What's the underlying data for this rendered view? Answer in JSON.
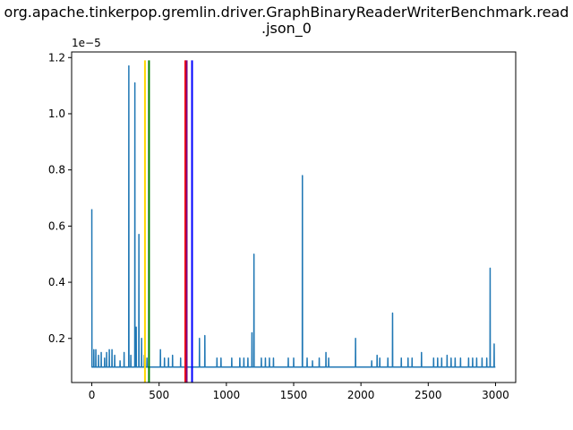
{
  "chart_data": {
    "type": "line",
    "title_line1": "org.apache.tinkerpop.gremlin.driver.GraphBinaryReaderWriterBenchmark.read",
    "title_line2": ".json_0",
    "xlabel": "",
    "ylabel": "",
    "y_scale_label": "1e−5",
    "xlim": [
      -150,
      3150
    ],
    "ylim": [
      4.3e-07,
      1.22e-05
    ],
    "x_ticks": [
      0,
      500,
      1000,
      1500,
      2000,
      2500,
      3000
    ],
    "x_tick_labels": [
      "0",
      "500",
      "1000",
      "1500",
      "2000",
      "2500",
      "3000"
    ],
    "y_ticks": [
      2e-06,
      4e-06,
      6e-06,
      8e-06,
      1e-05,
      1.2e-05
    ],
    "y_tick_labels": [
      "0.2",
      "0.4",
      "0.6",
      "0.8",
      "1.0",
      "1.2"
    ],
    "series": [
      {
        "color": "#1f77b4",
        "baseline": 9.8e-07,
        "n_points": 3000,
        "spikes": [
          [
            0,
            6.6e-06
          ],
          [
            15,
            1.6e-06
          ],
          [
            30,
            1.6e-06
          ],
          [
            50,
            1.4e-06
          ],
          [
            70,
            1.5e-06
          ],
          [
            95,
            1.3e-06
          ],
          [
            110,
            1.5e-06
          ],
          [
            130,
            1.6e-06
          ],
          [
            150,
            1.6e-06
          ],
          [
            170,
            1.4e-06
          ],
          [
            210,
            1.2e-06
          ],
          [
            240,
            1.5e-06
          ],
          [
            275,
            1.17e-05
          ],
          [
            290,
            1.4e-06
          ],
          [
            320,
            1.11e-05
          ],
          [
            330,
            2.4e-06
          ],
          [
            350,
            5.7e-06
          ],
          [
            370,
            2e-06
          ],
          [
            390,
            1.4e-06
          ],
          [
            410,
            1.3e-06
          ],
          [
            510,
            1.6e-06
          ],
          [
            540,
            1.3e-06
          ],
          [
            570,
            1.3e-06
          ],
          [
            600,
            1.4e-06
          ],
          [
            660,
            1.3e-06
          ],
          [
            800,
            2e-06
          ],
          [
            840,
            2.1e-06
          ],
          [
            930,
            1.3e-06
          ],
          [
            960,
            1.3e-06
          ],
          [
            1040,
            1.3e-06
          ],
          [
            1100,
            1.3e-06
          ],
          [
            1130,
            1.3e-06
          ],
          [
            1160,
            1.3e-06
          ],
          [
            1190,
            2.2e-06
          ],
          [
            1205,
            5e-06
          ],
          [
            1260,
            1.3e-06
          ],
          [
            1290,
            1.3e-06
          ],
          [
            1320,
            1.3e-06
          ],
          [
            1350,
            1.3e-06
          ],
          [
            1460,
            1.3e-06
          ],
          [
            1500,
            1.3e-06
          ],
          [
            1565,
            7.8e-06
          ],
          [
            1600,
            1.3e-06
          ],
          [
            1640,
            1.2e-06
          ],
          [
            1690,
            1.3e-06
          ],
          [
            1740,
            1.5e-06
          ],
          [
            1760,
            1.3e-06
          ],
          [
            1960,
            2e-06
          ],
          [
            2080,
            1.2e-06
          ],
          [
            2120,
            1.4e-06
          ],
          [
            2140,
            1.3e-06
          ],
          [
            2200,
            1.3e-06
          ],
          [
            2235,
            2.9e-06
          ],
          [
            2300,
            1.3e-06
          ],
          [
            2350,
            1.3e-06
          ],
          [
            2380,
            1.3e-06
          ],
          [
            2450,
            1.5e-06
          ],
          [
            2540,
            1.3e-06
          ],
          [
            2570,
            1.3e-06
          ],
          [
            2600,
            1.3e-06
          ],
          [
            2640,
            1.4e-06
          ],
          [
            2670,
            1.3e-06
          ],
          [
            2700,
            1.3e-06
          ],
          [
            2740,
            1.3e-06
          ],
          [
            2800,
            1.3e-06
          ],
          [
            2830,
            1.3e-06
          ],
          [
            2860,
            1.3e-06
          ],
          [
            2900,
            1.3e-06
          ],
          [
            2935,
            1.3e-06
          ],
          [
            2960,
            4.5e-06
          ],
          [
            2990,
            1.8e-06
          ]
        ]
      }
    ],
    "vertical_lines": [
      {
        "x": 395,
        "color": "#ffd700",
        "y_top": 1.19e-05
      },
      {
        "x": 425,
        "color": "#008000",
        "y_top": 1.19e-05
      },
      {
        "x": 695,
        "color": "#ff0000",
        "y_top": 1.19e-05
      },
      {
        "x": 705,
        "color": "#800080",
        "y_top": 1.19e-05
      },
      {
        "x": 745,
        "color": "#0000ff",
        "y_top": 1.19e-05
      }
    ]
  }
}
